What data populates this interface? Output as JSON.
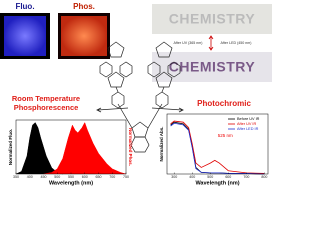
{
  "photos": {
    "fluo": "Fluo.",
    "phos": "Phos."
  },
  "chemistry": {
    "word_top": "CHEMISTRY",
    "word_bottom": "CHEMISTRY",
    "step_uv": "After UV (365 nm)",
    "step_led": "After LED (450 nm)"
  },
  "labels": {
    "rtp": "Room Temperature Phosphorescence",
    "photochromic": "Photochromic"
  },
  "chart_data": [
    {
      "type": "area",
      "xlabel": "Wavelength (nm)",
      "ylabel": "Normalized Fluo.",
      "y2label": "Normalized Phos.",
      "xlim": [
        350,
        750
      ],
      "xticks": [
        350,
        400,
        450,
        500,
        550,
        600,
        650,
        700,
        750
      ],
      "ylim": [
        0,
        1.05
      ],
      "y2lim": [
        0,
        1.05
      ],
      "series": [
        {
          "color": "#000000",
          "x": [
            350,
            370,
            390,
            400,
            410,
            420,
            430,
            440,
            460,
            480,
            500,
            520
          ],
          "values": [
            0,
            0.05,
            0.35,
            0.7,
            0.95,
            1,
            0.9,
            0.7,
            0.35,
            0.12,
            0.03,
            0
          ]
        },
        {
          "color": "#ff0000",
          "axis": "y2",
          "x": [
            450,
            480,
            500,
            520,
            540,
            555,
            565,
            575,
            590,
            600,
            610,
            630,
            650,
            680,
            700,
            730,
            750
          ],
          "values": [
            0,
            0.03,
            0.1,
            0.3,
            0.7,
            0.95,
            0.85,
            0.8,
            0.9,
            1,
            0.85,
            0.6,
            0.4,
            0.2,
            0.1,
            0.03,
            0
          ]
        }
      ]
    },
    {
      "type": "line",
      "xlabel": "Wavelength (nm)",
      "ylabel": "Normalized Abs.",
      "annotation": "525 nm",
      "legend": "upper right",
      "xlim": [
        260,
        820
      ],
      "xticks": [
        300,
        400,
        500,
        600,
        700,
        800
      ],
      "ylim": [
        0,
        1.1
      ],
      "x": [
        280,
        300,
        350,
        380,
        400,
        420,
        450,
        500,
        525,
        550,
        600,
        700,
        800
      ],
      "series": [
        {
          "name": "Before UV IR",
          "color": "#000000",
          "values": [
            0.9,
            0.95,
            0.92,
            0.82,
            0.5,
            0.12,
            0.03,
            0.02,
            0.02,
            0.02,
            0.01,
            0.01,
            0
          ]
        },
        {
          "name": "After UV IR",
          "color": "#e00000",
          "values": [
            0.92,
            0.97,
            0.95,
            0.85,
            0.55,
            0.2,
            0.12,
            0.2,
            0.25,
            0.2,
            0.06,
            0.02,
            0.01
          ]
        },
        {
          "name": "After LED IR",
          "color": "#2030d0",
          "values": [
            0.88,
            0.93,
            0.9,
            0.8,
            0.48,
            0.1,
            0.03,
            0.02,
            0.02,
            0.02,
            0.01,
            0.01,
            0
          ]
        }
      ]
    }
  ]
}
